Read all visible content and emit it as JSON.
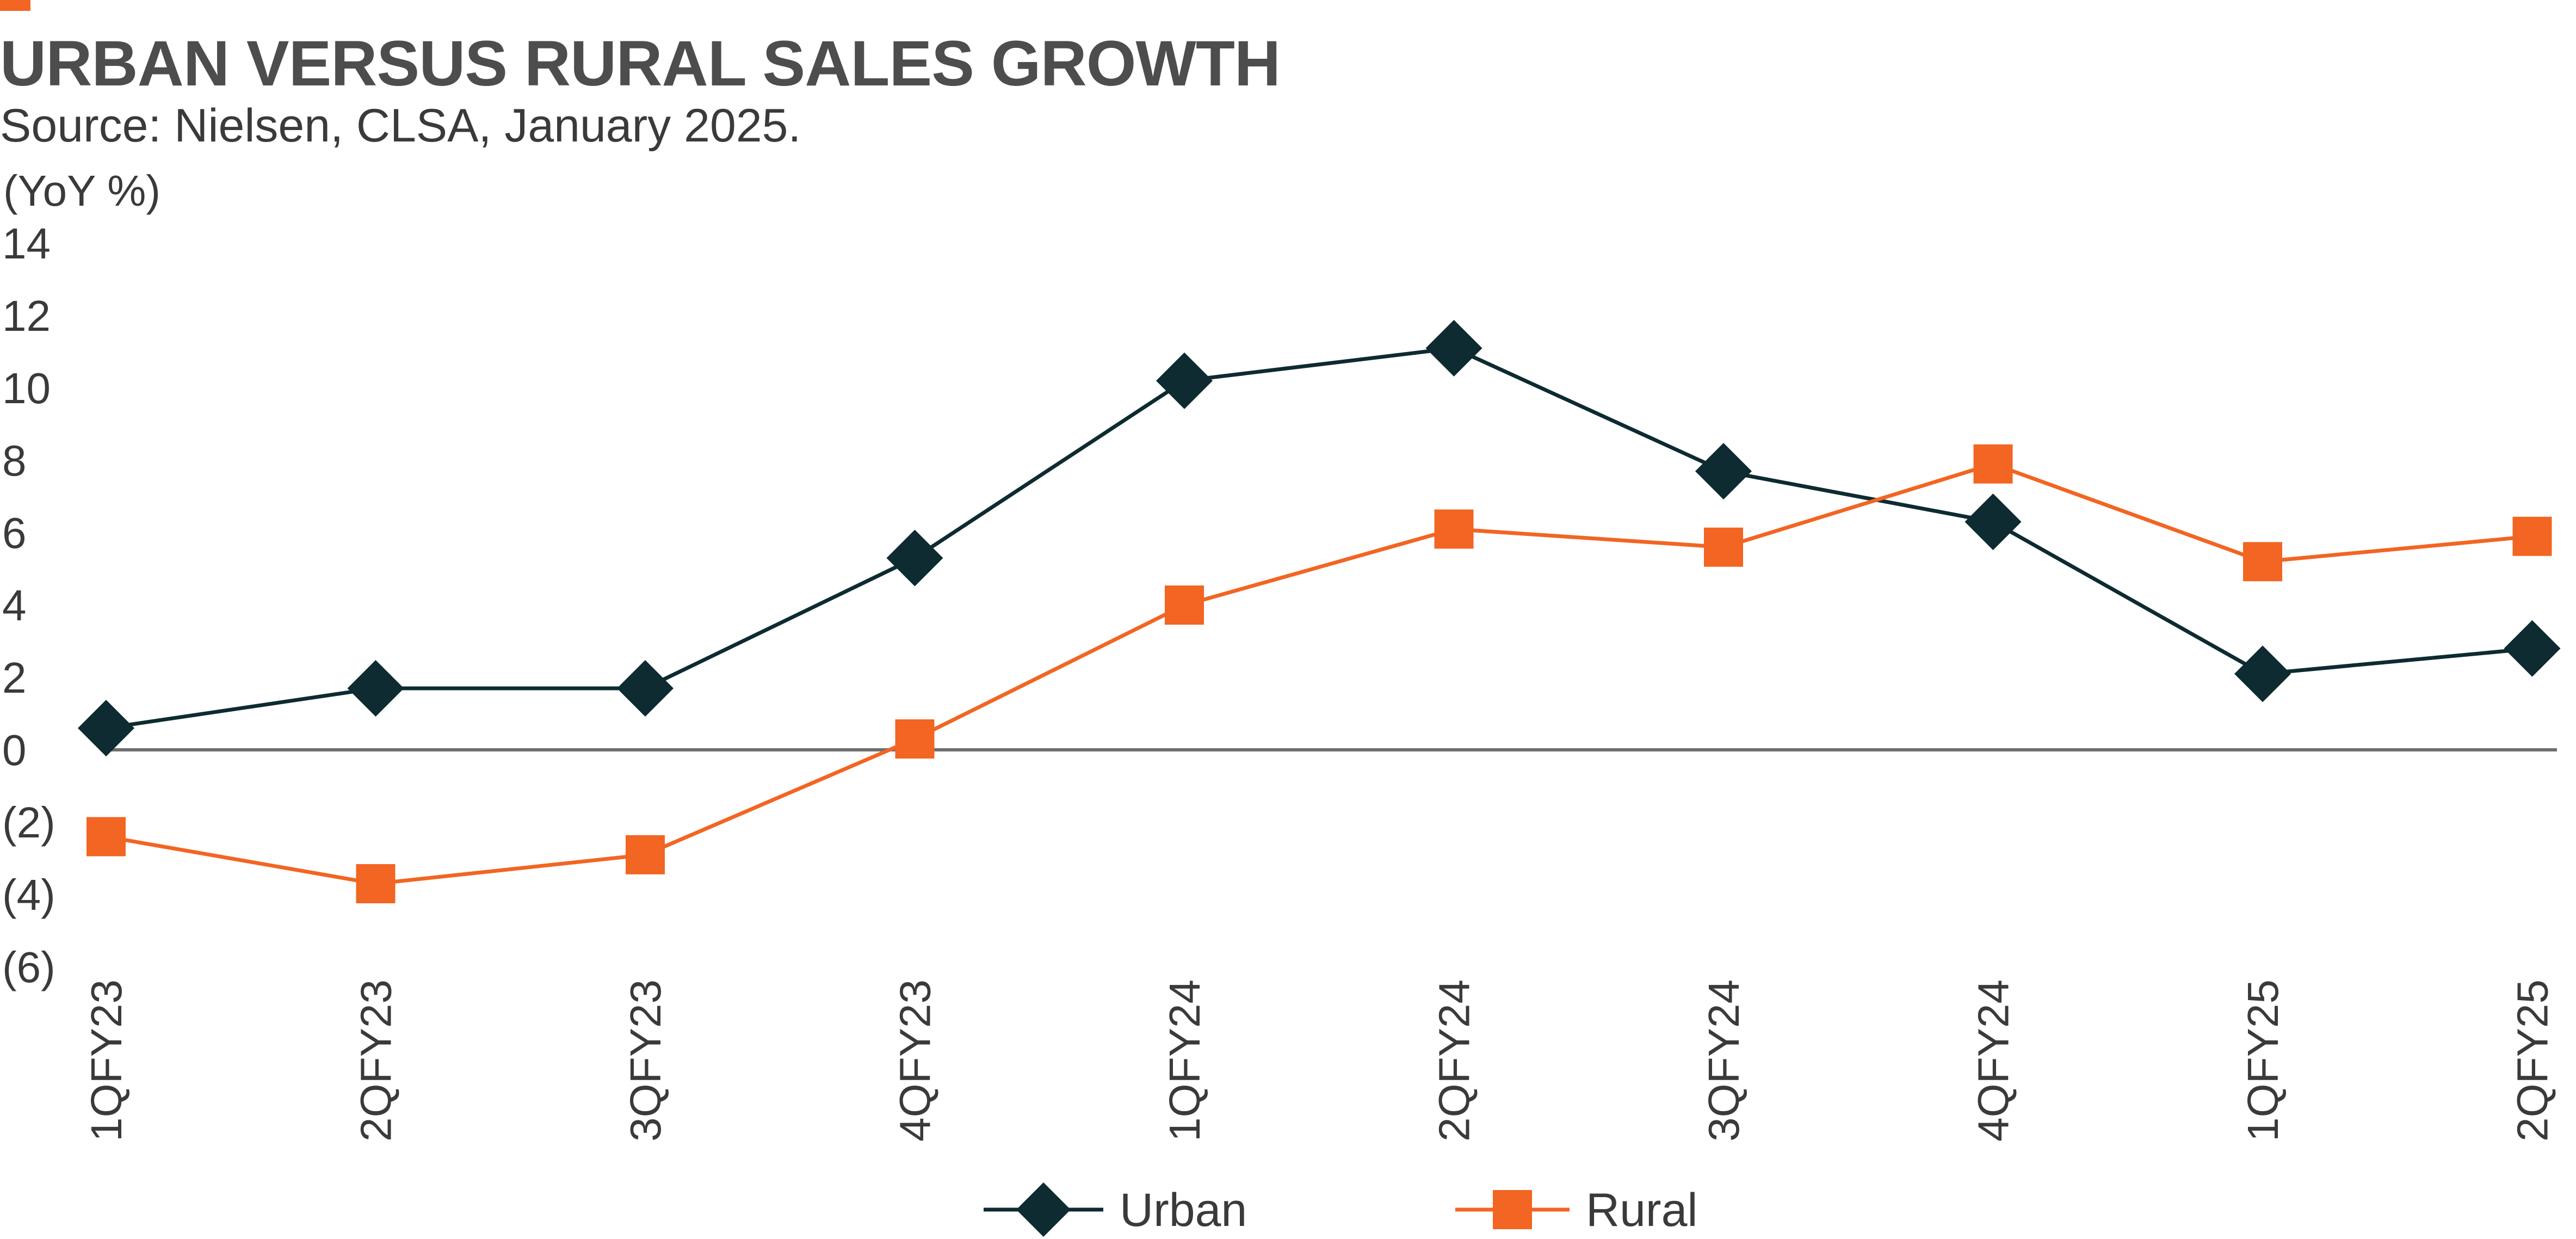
{
  "colors": {
    "accent": "#f26522",
    "title": "#4d4d4d",
    "urban": "#0d2b30",
    "rural": "#f26522",
    "axis": "#6d6e71",
    "text": "#3a3a3a"
  },
  "header": {
    "title": "URBAN VERSUS RURAL SALES GROWTH",
    "subtitle": "Source: Nielsen, CLSA, January 2025."
  },
  "chart_data": {
    "type": "line",
    "title": "URBAN VERSUS RURAL SALES GROWTH",
    "subtitle": "Source: Nielsen, CLSA, January 2025.",
    "ylabel": "(YoY %)",
    "xlabel": "",
    "ylim": [
      -6,
      14
    ],
    "yticks": [
      14,
      12,
      10,
      8,
      6,
      4,
      2,
      0,
      -2,
      -4,
      -6
    ],
    "ytick_labels": [
      "14",
      "12",
      "10",
      "8",
      "6",
      "4",
      "2",
      "0",
      "(2)",
      "(4)",
      "(6)"
    ],
    "categories": [
      "1QFY23",
      "2QFY23",
      "3QFY23",
      "4QFY23",
      "1QFY24",
      "2QFY24",
      "3QFY24",
      "4QFY24",
      "1QFY25",
      "2QFY25"
    ],
    "series": [
      {
        "name": "Urban",
        "marker": "diamond",
        "values": [
          0.6,
          1.7,
          1.7,
          5.3,
          10.2,
          11.1,
          7.7,
          6.3,
          2.1,
          2.8
        ]
      },
      {
        "name": "Rural",
        "marker": "square",
        "values": [
          -2.4,
          -3.7,
          -2.9,
          0.3,
          4.0,
          6.1,
          5.6,
          7.9,
          5.2,
          5.9
        ]
      }
    ],
    "grid": false,
    "legend": "bottom-center"
  }
}
